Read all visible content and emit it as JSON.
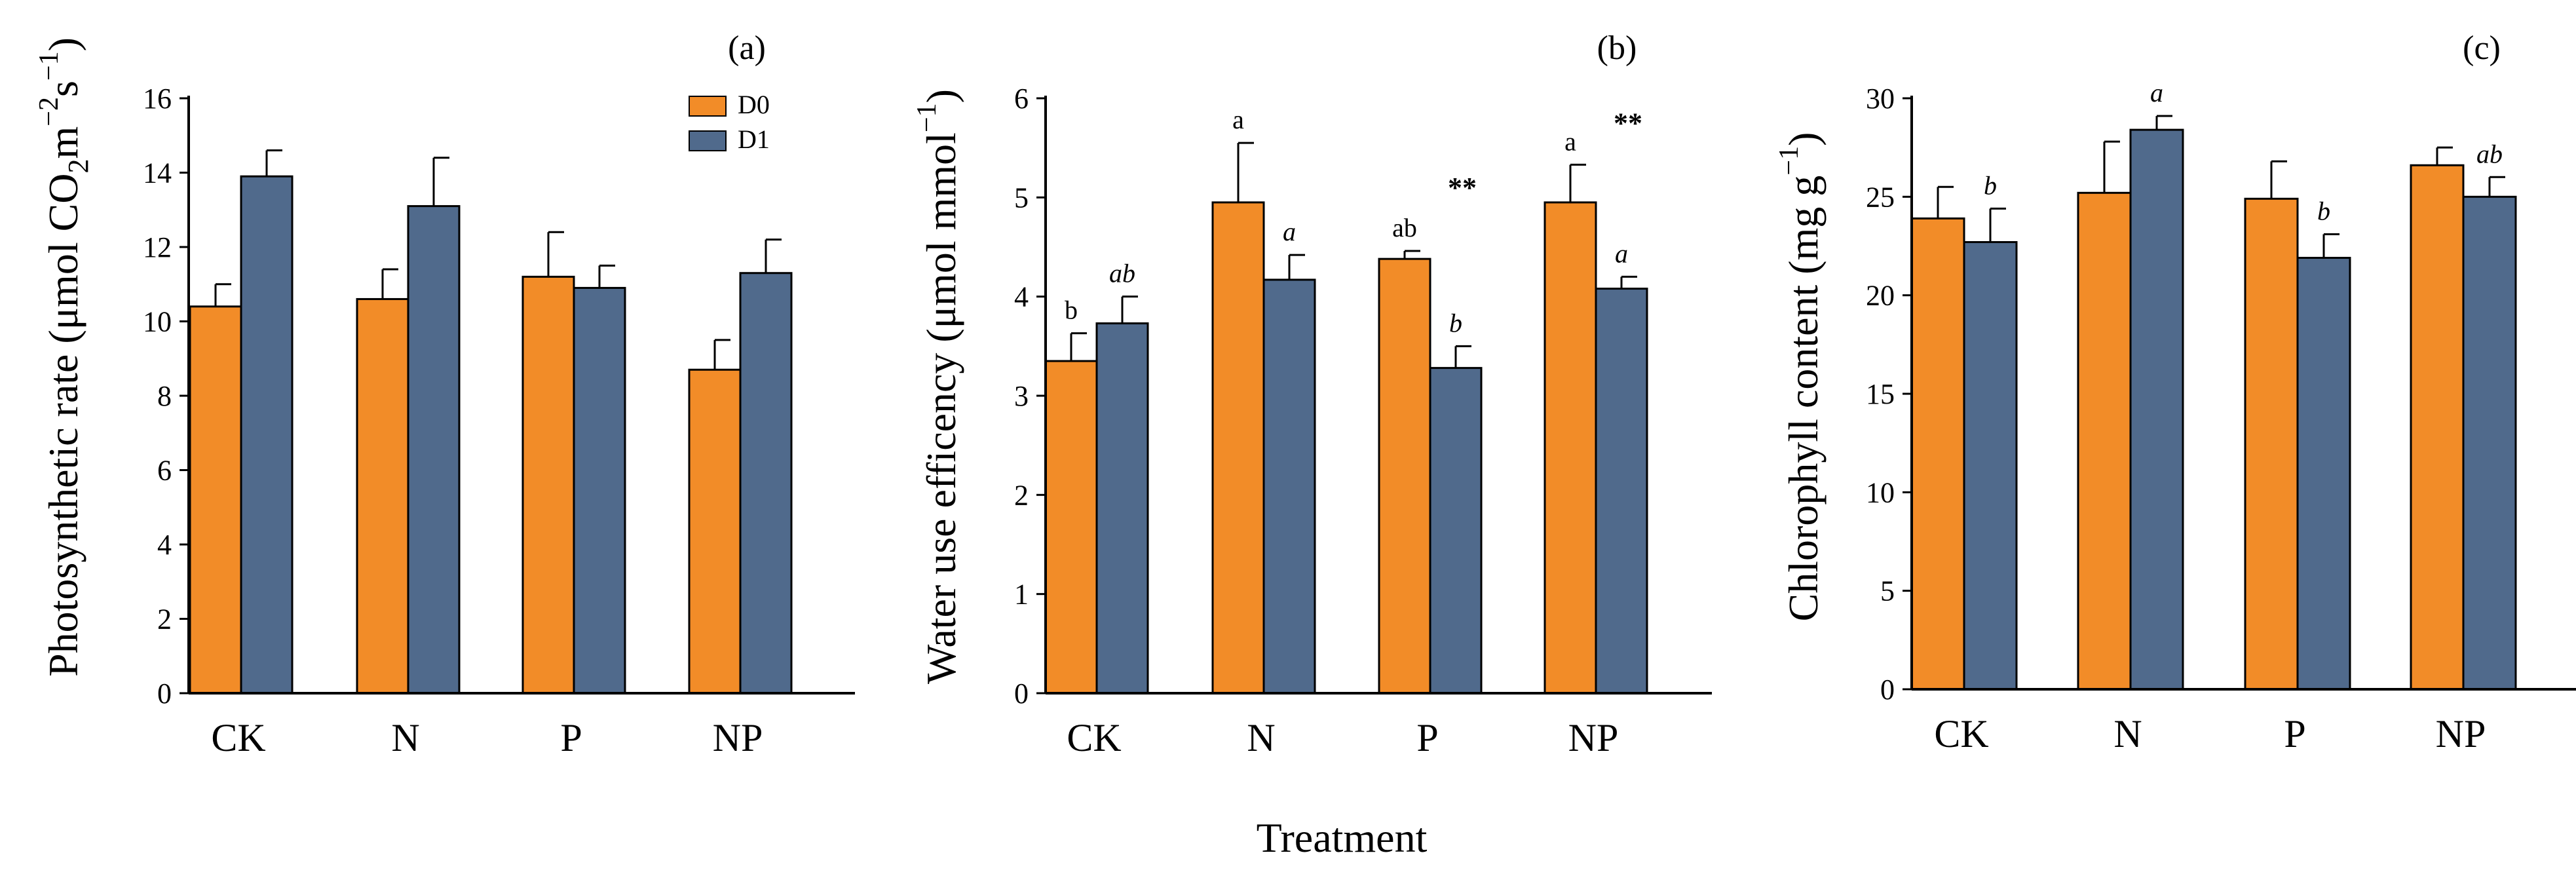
{
  "colors": {
    "d0": "#F28C28",
    "d1": "#506A8C",
    "axis": "#000000"
  },
  "shared_xlabel": "Treatment",
  "chart_data": [
    {
      "type": "bar",
      "panel": "(a)",
      "title": "",
      "ylabel": {
        "base": "Photosynthetic rate (μmol CO",
        "sub": "2",
        "mid1": "m",
        "sup1": "−2",
        "mid2": "s",
        "sup2": "−1",
        "end": ")"
      },
      "ylim": [
        0,
        16
      ],
      "yticks": [
        "0",
        "2",
        "4",
        "6",
        "8",
        "10",
        "12",
        "14",
        "16"
      ],
      "categories": [
        "CK",
        "N",
        "P",
        "NP"
      ],
      "legend": [
        "D0",
        "D1"
      ],
      "series": [
        {
          "name": "D0",
          "values": [
            10.4,
            10.6,
            11.2,
            8.7
          ],
          "errors": [
            0.6,
            0.8,
            1.2,
            0.8
          ]
        },
        {
          "name": "D1",
          "values": [
            13.9,
            13.1,
            10.9,
            11.3
          ],
          "errors": [
            0.7,
            1.3,
            0.6,
            0.9
          ]
        }
      ],
      "annotations": []
    },
    {
      "type": "bar",
      "panel": "(b)",
      "title": "",
      "ylabel": {
        "base": "Water use efficency (μmol mmol",
        "sup1": "−1",
        "end": ")"
      },
      "ylim": [
        0,
        6
      ],
      "yticks": [
        "0",
        "1",
        "2",
        "3",
        "4",
        "5",
        "6"
      ],
      "categories": [
        "CK",
        "N",
        "P",
        "NP"
      ],
      "series": [
        {
          "name": "D0",
          "values": [
            3.35,
            4.95,
            4.38,
            4.95
          ],
          "errors": [
            0.28,
            0.6,
            0.08,
            0.38
          ]
        },
        {
          "name": "D1",
          "values": [
            3.73,
            4.17,
            3.28,
            4.08
          ],
          "errors": [
            0.27,
            0.25,
            0.22,
            0.12
          ]
        }
      ],
      "annotations": [
        {
          "cat": 0,
          "series": 0,
          "text": "b",
          "style": "normal"
        },
        {
          "cat": 0,
          "series": 1,
          "text": "ab",
          "style": "italic"
        },
        {
          "cat": 1,
          "series": 0,
          "text": "a",
          "style": "normal"
        },
        {
          "cat": 1,
          "series": 1,
          "text": "a",
          "style": "italic"
        },
        {
          "cat": 2,
          "series": 0,
          "text": "ab",
          "style": "normal"
        },
        {
          "cat": 2,
          "series": 1,
          "text": "b",
          "style": "italic"
        },
        {
          "cat": 2,
          "series": 1,
          "text": "**",
          "style": "star",
          "value": 5.2
        },
        {
          "cat": 3,
          "series": 0,
          "text": "a",
          "style": "normal"
        },
        {
          "cat": 3,
          "series": 1,
          "text": "a",
          "style": "italic"
        },
        {
          "cat": 3,
          "series": 1,
          "text": "**",
          "style": "star",
          "value": 5.85
        }
      ]
    },
    {
      "type": "bar",
      "panel": "(c)",
      "title": "",
      "ylabel": {
        "base": "Chlorophyll content (mg g",
        "sup1": "−1",
        "end": ")"
      },
      "ylim": [
        0,
        30
      ],
      "yticks": [
        "0",
        "5",
        "10",
        "15",
        "20",
        "25",
        "30"
      ],
      "categories": [
        "CK",
        "N",
        "P",
        "NP"
      ],
      "series": [
        {
          "name": "D0",
          "values": [
            23.9,
            25.2,
            24.9,
            26.6
          ],
          "errors": [
            1.6,
            2.6,
            1.9,
            0.9
          ]
        },
        {
          "name": "D1",
          "values": [
            22.7,
            28.4,
            21.9,
            25.0
          ],
          "errors": [
            1.7,
            0.7,
            1.2,
            1.0
          ]
        }
      ],
      "annotations": [
        {
          "cat": 0,
          "series": 1,
          "text": "b",
          "style": "italic"
        },
        {
          "cat": 1,
          "series": 1,
          "text": "a",
          "style": "italic"
        },
        {
          "cat": 2,
          "series": 1,
          "text": "b",
          "style": "italic"
        },
        {
          "cat": 3,
          "series": 1,
          "text": "ab",
          "style": "italic"
        }
      ]
    }
  ]
}
